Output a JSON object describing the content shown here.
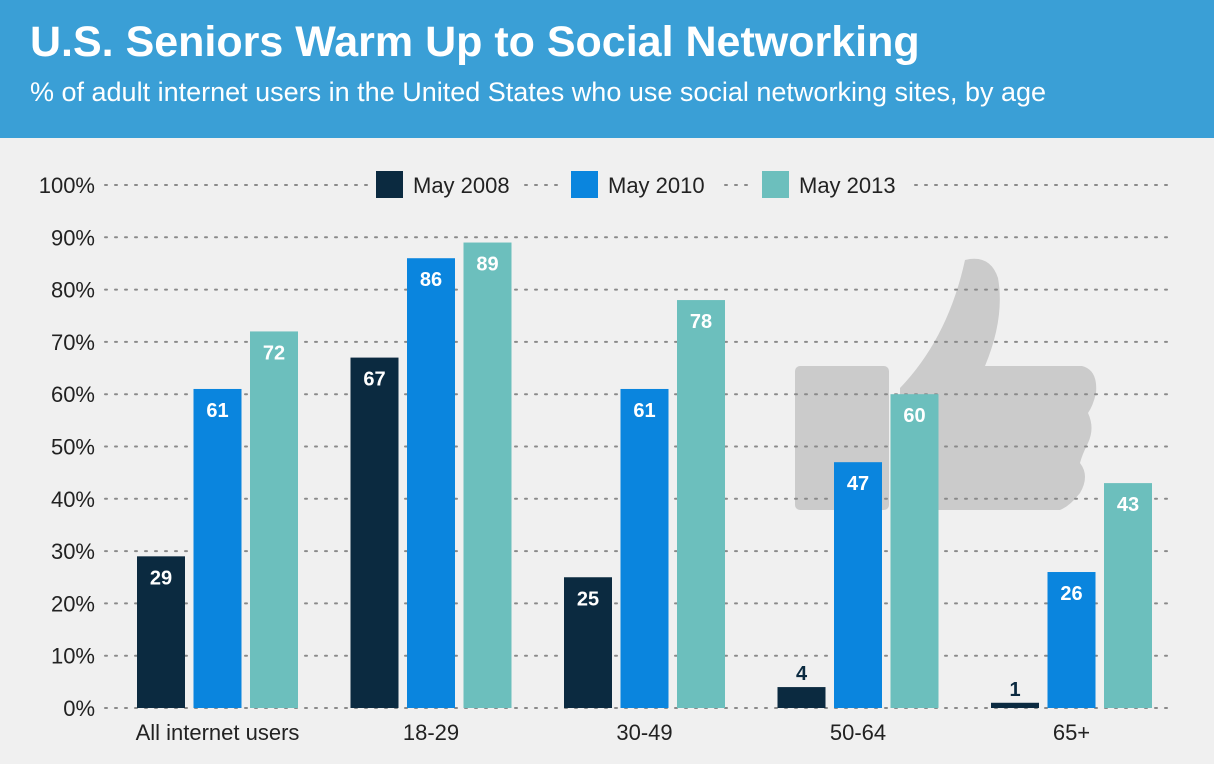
{
  "header": {
    "title": "U.S. Seniors Warm Up to Social Networking",
    "subtitle": "% of adult internet users in the United States who use social networking sites, by age"
  },
  "chart_data": {
    "type": "bar",
    "categories": [
      "All internet users",
      "18-29",
      "30-49",
      "50-64",
      "65+"
    ],
    "series": [
      {
        "name": "May 2008",
        "color": "#0b2a40",
        "values": [
          29,
          67,
          25,
          4,
          1
        ]
      },
      {
        "name": "May 2010",
        "color": "#0a85de",
        "values": [
          61,
          86,
          61,
          47,
          26
        ]
      },
      {
        "name": "May 2013",
        "color": "#6cbfbd",
        "values": [
          72,
          89,
          78,
          60,
          43
        ]
      }
    ],
    "ylim": [
      0,
      100
    ],
    "yticks": [
      "0%",
      "10%",
      "20%",
      "30%",
      "40%",
      "50%",
      "60%",
      "70%",
      "80%",
      "90%",
      "100%"
    ],
    "grid": true,
    "legend": "top-center",
    "decoration": "thumbs-up-icon"
  }
}
